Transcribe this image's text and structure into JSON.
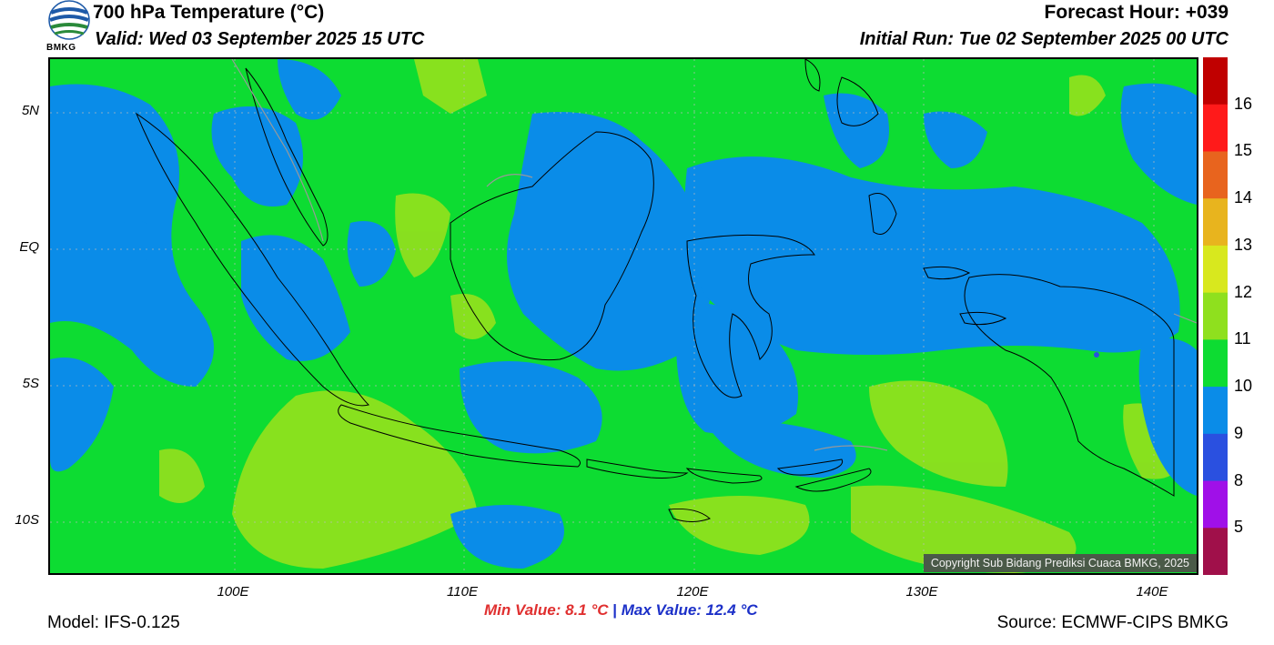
{
  "header": {
    "title": "700 hPa Temperature (°C)",
    "valid": "Valid: Wed 03 September 2025 15 UTC",
    "forecast_hour": "Forecast Hour: +039",
    "initial_run": "Initial Run: Tue 02 September 2025 00 UTC",
    "logo_text": "BMKG"
  },
  "map": {
    "lat_labels": [
      "5N",
      "EQ",
      "5S",
      "10S"
    ],
    "lon_labels": [
      "100E",
      "110E",
      "120E",
      "130E",
      "140E"
    ],
    "copyright": "Copyright Sub Bidang Prediksi Cuaca BMKG, 2025"
  },
  "colorbar": {
    "labels": [
      "16",
      "15",
      "14",
      "13",
      "12",
      "11",
      "10",
      "9",
      "8",
      "5"
    ],
    "colors": [
      "#c00000",
      "#ff1a1a",
      "#e8641e",
      "#e8b41e",
      "#d8e81e",
      "#8fe01e",
      "#0ddc32",
      "#0a8ce8",
      "#2a50e0",
      "#a010e8",
      "#a0104a"
    ]
  },
  "footer": {
    "model": "Model: IFS-0.125",
    "source": "Source: ECMWF-CIPS BMKG",
    "min_value": "Min Value: 8.1 °C",
    "max_value": "Max Value: 12.4 °C",
    "separator": "|"
  }
}
